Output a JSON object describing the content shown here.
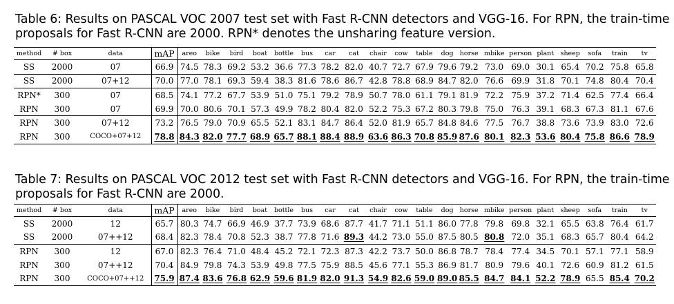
{
  "table6": {
    "caption": "Table 6: Results on PASCAL VOC 2007 test set with Fast R-CNN detectors and VGG-16. For RPN, the train-time proposals for Fast R-CNN are 2000. RPN* denotes the unsharing feature version.",
    "caption_line1": "Table 6: Results on PASCAL VOC 2007 test set with Fast R-CNN detectors and VGG-16. For RPN, the train-time",
    "caption_line2": "proposals for Fast R-CNN are 2000. RPN* denotes the unsharing feature version.",
    "headers": [
      "method",
      "# box",
      "data",
      "mAP",
      "areo",
      "bike",
      "bird",
      "boat",
      "bottle",
      "bus",
      "car",
      "cat",
      "chair",
      "cow",
      "table",
      "dog",
      "horse",
      "mbike",
      "person",
      "plant",
      "sheep",
      "sofa",
      "train",
      "tv"
    ],
    "rows": [
      {
        "cells": [
          "SS",
          "2000",
          "07",
          "66.9",
          "74.5",
          "78.3",
          "69.2",
          "53.2",
          "36.6",
          "77.3",
          "78.2",
          "82.0",
          "40.7",
          "72.7",
          "67.9",
          "79.6",
          "79.2",
          "73.0",
          "69.0",
          "30.1",
          "65.4",
          "70.2",
          "75.8",
          "65.8"
        ],
        "emph": []
      },
      {
        "cells": [
          "SS",
          "2000",
          "07+12",
          "70.0",
          "77.0",
          "78.1",
          "69.3",
          "59.4",
          "38.3",
          "81.6",
          "78.6",
          "86.7",
          "42.8",
          "78.8",
          "68.9",
          "84.7",
          "82.0",
          "76.6",
          "69.9",
          "31.8",
          "70.1",
          "74.8",
          "80.4",
          "70.4"
        ],
        "emph": []
      },
      {
        "cells": [
          "RPN*",
          "300",
          "07",
          "68.5",
          "74.1",
          "77.2",
          "67.7",
          "53.9",
          "51.0",
          "75.1",
          "79.2",
          "78.9",
          "50.7",
          "78.0",
          "61.1",
          "79.1",
          "81.9",
          "72.2",
          "75.9",
          "37.2",
          "71.4",
          "62.5",
          "77.4",
          "66.4"
        ],
        "emph": []
      },
      {
        "cells": [
          "RPN",
          "300",
          "07",
          "69.9",
          "70.0",
          "80.6",
          "70.1",
          "57.3",
          "49.9",
          "78.2",
          "80.4",
          "82.0",
          "52.2",
          "75.3",
          "67.2",
          "80.3",
          "79.8",
          "75.0",
          "76.3",
          "39.1",
          "68.3",
          "67.3",
          "81.1",
          "67.6"
        ],
        "emph": []
      },
      {
        "cells": [
          "RPN",
          "300",
          "07+12",
          "73.2",
          "76.5",
          "79.0",
          "70.9",
          "65.5",
          "52.1",
          "83.1",
          "84.7",
          "86.4",
          "52.0",
          "81.9",
          "65.7",
          "84.8",
          "84.6",
          "77.5",
          "76.7",
          "38.8",
          "73.6",
          "73.9",
          "83.0",
          "72.6"
        ],
        "emph": []
      },
      {
        "cells": [
          "RPN",
          "300",
          "COCO+07+12",
          "78.8",
          "84.3",
          "82.0",
          "77.7",
          "68.9",
          "65.7",
          "88.1",
          "88.4",
          "88.9",
          "63.6",
          "86.3",
          "70.8",
          "85.9",
          "87.6",
          "80.1",
          "82.3",
          "53.6",
          "80.4",
          "75.8",
          "86.6",
          "78.9"
        ],
        "emph": [
          3,
          4,
          5,
          6,
          7,
          8,
          9,
          10,
          11,
          12,
          13,
          14,
          15,
          16,
          17,
          18,
          19,
          20,
          21,
          22,
          23
        ]
      }
    ]
  },
  "table7": {
    "caption_line1": "Table 7: Results on PASCAL VOC 2012 test set with Fast R-CNN detectors and VGG-16. For RPN, the train-time",
    "caption_line2": "proposals for Fast R-CNN are 2000.",
    "headers": [
      "method",
      "# box",
      "data",
      "mAP",
      "areo",
      "bike",
      "bird",
      "boat",
      "bottle",
      "bus",
      "car",
      "cat",
      "chair",
      "cow",
      "table",
      "dog",
      "horse",
      "mbike",
      "person",
      "plant",
      "sheep",
      "sofa",
      "train",
      "tv"
    ],
    "rows": [
      {
        "cells": [
          "SS",
          "2000",
          "12",
          "65.7",
          "80.3",
          "74.7",
          "66.9",
          "46.9",
          "37.7",
          "73.9",
          "68.6",
          "87.7",
          "41.7",
          "71.1",
          "51.1",
          "86.0",
          "77.8",
          "79.8",
          "69.8",
          "32.1",
          "65.5",
          "63.8",
          "76.4",
          "61.7"
        ],
        "emph": []
      },
      {
        "cells": [
          "SS",
          "2000",
          "07++12",
          "68.4",
          "82.3",
          "78.4",
          "70.8",
          "52.3",
          "38.7",
          "77.8",
          "71.6",
          "89.3",
          "44.2",
          "73.0",
          "55.0",
          "87.5",
          "80.5",
          "80.8",
          "72.0",
          "35.1",
          "68.3",
          "65.7",
          "80.4",
          "64.2"
        ],
        "emph": [
          11,
          17
        ]
      },
      {
        "cells": [
          "RPN",
          "300",
          "12",
          "67.0",
          "82.3",
          "76.4",
          "71.0",
          "48.4",
          "45.2",
          "72.1",
          "72.3",
          "87.3",
          "42.2",
          "73.7",
          "50.0",
          "86.8",
          "78.7",
          "78.4",
          "77.4",
          "34.5",
          "70.1",
          "57.1",
          "77.1",
          "58.9"
        ],
        "emph": []
      },
      {
        "cells": [
          "RPN",
          "300",
          "07++12",
          "70.4",
          "84.9",
          "79.8",
          "74.3",
          "53.9",
          "49.8",
          "77.5",
          "75.9",
          "88.5",
          "45.6",
          "77.1",
          "55.3",
          "86.9",
          "81.7",
          "80.9",
          "79.6",
          "40.1",
          "72.6",
          "60.9",
          "81.2",
          "61.5"
        ],
        "emph": []
      },
      {
        "cells": [
          "RPN",
          "300",
          "COCO+07++12",
          "75.9",
          "87.4",
          "83.6",
          "76.8",
          "62.9",
          "59.6",
          "81.9",
          "82.0",
          "91.3",
          "54.9",
          "82.6",
          "59.0",
          "89.0",
          "85.5",
          "84.7",
          "84.1",
          "52.2",
          "78.9",
          "65.5",
          "85.4",
          "70.2"
        ],
        "emph": [
          3,
          4,
          5,
          6,
          7,
          8,
          9,
          10,
          11,
          12,
          13,
          14,
          15,
          16,
          17,
          18,
          19,
          20,
          22,
          23
        ]
      }
    ]
  }
}
